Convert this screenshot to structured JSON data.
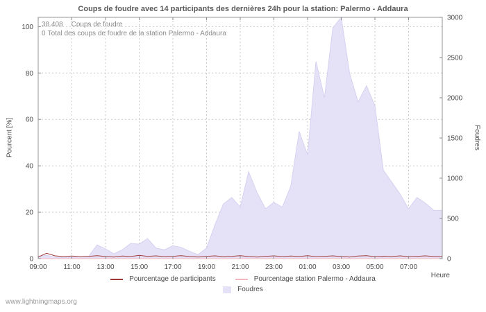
{
  "title": "Coups de foudre avec 14 participants des dernières 24h pour la station: Palermo - Addaura",
  "watermark": "www.lightningmaps.org",
  "annotations": {
    "total_value": "38.408",
    "total_label": "Coups de foudre",
    "station_value": "0",
    "station_label": "Total des coups de foudre de la station Palermo - Addaura"
  },
  "axes": {
    "left_label": "Pourcent  [%]",
    "right_label": "Foudres",
    "x_label": "Heure"
  },
  "legend": {
    "participants": {
      "label": "Pourcentage de participants",
      "color": "#a23535"
    },
    "station": {
      "label": "Pourcentage station Palermo - Addaura",
      "color": "#f3b6bf"
    },
    "foudres": {
      "label": "Foudres",
      "color": "#e5e2f7"
    }
  },
  "chart_data": {
    "type": "area",
    "title": "Coups de foudre avec 14 participants des dernières 24h pour la station: Palermo - Addaura",
    "xlabel": "Heure",
    "ylabel_left": "Pourcent [%]",
    "ylabel_right": "Foudres",
    "left_ylim": [
      0,
      100
    ],
    "left_yticks": [
      0,
      20,
      40,
      60,
      80,
      100
    ],
    "left_axis_plot_max": 104,
    "right_ylim": [
      0,
      3000
    ],
    "right_yticks": [
      0,
      500,
      1000,
      1500,
      2000,
      2500,
      3000
    ],
    "grid": true,
    "legend_position": "bottom",
    "x_tick_labels": [
      "09:00",
      "11:00",
      "13:00",
      "15:00",
      "17:00",
      "19:00",
      "21:00",
      "23:00",
      "01:00",
      "03:00",
      "05:00",
      "07:00"
    ],
    "x_times": [
      "09:00",
      "09:30",
      "10:00",
      "10:30",
      "11:00",
      "11:30",
      "12:00",
      "12:30",
      "13:00",
      "13:30",
      "14:00",
      "14:30",
      "15:00",
      "15:30",
      "16:00",
      "16:30",
      "17:00",
      "17:30",
      "18:00",
      "18:30",
      "19:00",
      "19:30",
      "20:00",
      "20:30",
      "21:00",
      "21:30",
      "22:00",
      "22:30",
      "23:00",
      "23:30",
      "00:00",
      "00:30",
      "01:00",
      "01:30",
      "02:00",
      "02:30",
      "03:00",
      "03:30",
      "04:00",
      "04:30",
      "05:00",
      "05:30",
      "06:00",
      "06:30",
      "07:00",
      "07:30",
      "08:00",
      "08:30"
    ],
    "series": [
      {
        "name": "Foudres",
        "type": "area",
        "axis": "right",
        "color": "#e5e2f7",
        "edge_color": "#d6d1f0",
        "values": [
          30,
          40,
          20,
          15,
          20,
          25,
          30,
          170,
          120,
          60,
          110,
          190,
          180,
          250,
          130,
          110,
          160,
          140,
          90,
          50,
          130,
          420,
          680,
          760,
          640,
          1080,
          820,
          620,
          700,
          640,
          900,
          1580,
          1290,
          2450,
          2000,
          2870,
          3000,
          2300,
          1950,
          2150,
          1900,
          1100,
          950,
          800,
          620,
          760,
          690,
          600
        ]
      },
      {
        "name": "Pourcentage de participants",
        "type": "line",
        "axis": "left",
        "color": "#a23535",
        "values": [
          0.7,
          2.3,
          1.2,
          0.9,
          1.1,
          0.8,
          1.0,
          1.3,
          0.9,
          0.7,
          1.1,
          0.9,
          1.4,
          1.0,
          1.2,
          0.8,
          1.0,
          1.3,
          0.9,
          0.7,
          1.0,
          1.2,
          0.8,
          1.0,
          1.3,
          0.9,
          0.7,
          1.0,
          1.2,
          0.8,
          1.1,
          0.9,
          1.3,
          0.8,
          1.0,
          1.2,
          0.9,
          0.7,
          1.1,
          1.3,
          0.8,
          1.0,
          0.9,
          1.2,
          0.8,
          1.0,
          1.2,
          0.9
        ]
      },
      {
        "name": "Pourcentage station Palermo - Addaura",
        "type": "line",
        "axis": "left",
        "color": "#f3b6bf",
        "values": [
          0,
          0,
          0,
          0,
          0,
          0,
          0,
          0,
          0,
          0,
          0,
          0,
          0,
          0,
          0,
          0,
          0,
          0,
          0,
          0,
          0,
          0,
          0,
          0,
          0,
          0,
          0,
          0,
          0,
          0,
          0,
          0,
          0,
          0,
          0,
          0,
          0,
          0,
          0,
          0,
          0,
          0,
          0,
          0,
          0,
          0,
          0,
          0
        ]
      }
    ]
  }
}
